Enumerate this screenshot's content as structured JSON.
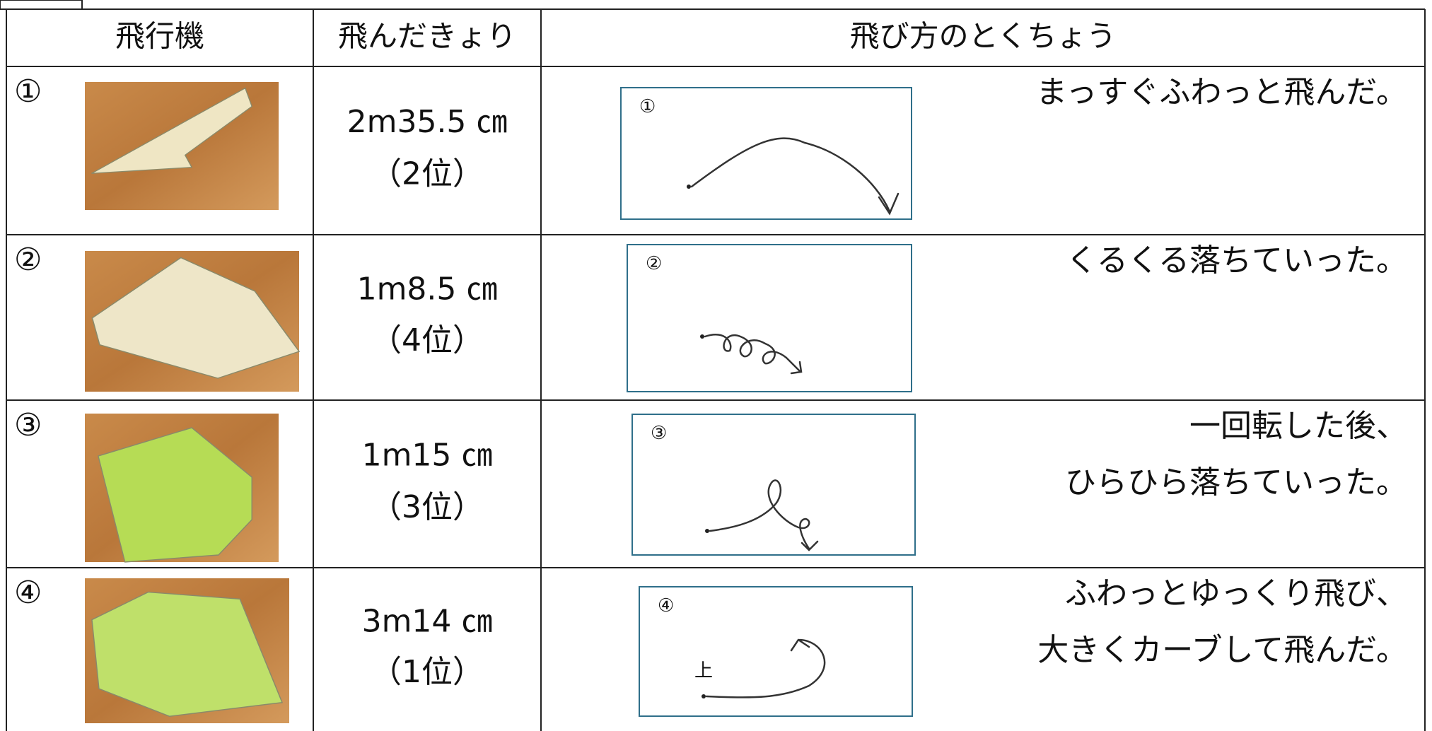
{
  "table": {
    "header": [
      "飛行機",
      "飛んだきょり",
      "飛び方のとくちょう"
    ],
    "rows": [
      {
        "number": "①",
        "distance": "2m35.5 ㎝",
        "rank": "（2位）",
        "description": [
          "まっすぐふわっと飛んだ。"
        ],
        "sketch_label": "①"
      },
      {
        "number": "②",
        "distance": "1m8.5 ㎝",
        "rank": "（4位）",
        "description": [
          "くるくる落ちていった。"
        ],
        "sketch_label": "②"
      },
      {
        "number": "③",
        "distance": "1m15 ㎝",
        "rank": "（3位）",
        "description": [
          "一回転した後、",
          "ひらひら落ちていった。"
        ],
        "sketch_label": "③"
      },
      {
        "number": "④",
        "distance": "3m14 ㎝",
        "rank": "（1位）",
        "description": [
          "ふわっとゆっくり飛び、",
          "大きくカーブして飛んだ。"
        ],
        "sketch_label": "④",
        "sketch_note": "上"
      }
    ]
  }
}
